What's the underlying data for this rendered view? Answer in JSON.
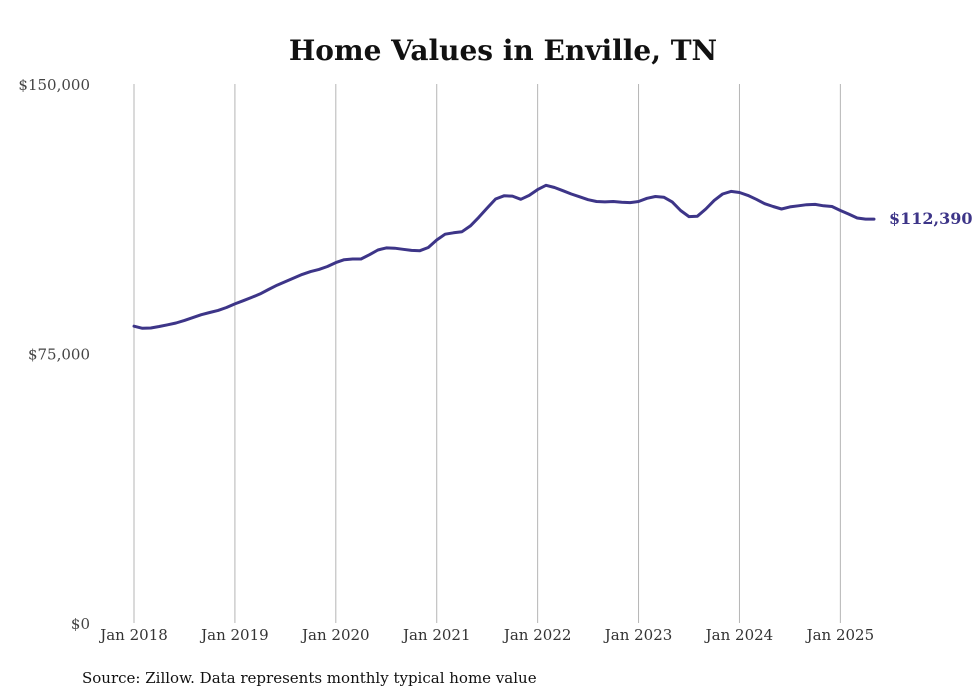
{
  "chart_data": {
    "type": "line",
    "title": "Home Values in Enville, TN",
    "xlabel": "",
    "ylabel": "",
    "ylim": [
      0,
      150000
    ],
    "y_ticks": [
      {
        "value": 0,
        "label": "$0"
      },
      {
        "value": 75000,
        "label": "$75,000"
      },
      {
        "value": 150000,
        "label": "$150,000"
      }
    ],
    "x_ticks": [
      {
        "index": 0,
        "label": "Jan 2018"
      },
      {
        "index": 12,
        "label": "Jan 2019"
      },
      {
        "index": 24,
        "label": "Jan 2020"
      },
      {
        "index": 36,
        "label": "Jan 2021"
      },
      {
        "index": 48,
        "label": "Jan 2022"
      },
      {
        "index": 60,
        "label": "Jan 2023"
      },
      {
        "index": 72,
        "label": "Jan 2024"
      },
      {
        "index": 84,
        "label": "Jan 2025"
      }
    ],
    "grid": "vertical",
    "series": [
      {
        "name": "Typical home value",
        "color": "#3d3588",
        "end_label": "$112,390",
        "values": [
          82600,
          82000,
          82100,
          82500,
          83000,
          83500,
          84200,
          85000,
          85800,
          86400,
          87000,
          87800,
          88800,
          89700,
          90600,
          91600,
          92800,
          94000,
          95000,
          96000,
          97000,
          97800,
          98400,
          99200,
          100300,
          101100,
          101300,
          101300,
          102500,
          103800,
          104400,
          104300,
          104000,
          103700,
          103600,
          104500,
          106600,
          108200,
          108600,
          108900,
          110500,
          112900,
          115500,
          118000,
          118900,
          118800,
          117900,
          119000,
          120600,
          121800,
          121200,
          120300,
          119400,
          118600,
          117800,
          117300,
          117200,
          117300,
          117100,
          117000,
          117300,
          118200,
          118700,
          118500,
          117200,
          114800,
          113100,
          113200,
          115200,
          117600,
          119400,
          120100,
          119800,
          119000,
          117900,
          116700,
          115900,
          115200,
          115800,
          116100,
          116400,
          116500,
          116100,
          115900,
          114800,
          113800,
          112700,
          112400,
          112390
        ]
      }
    ]
  },
  "source_note": "Source: Zillow. Data represents monthly typical home value"
}
